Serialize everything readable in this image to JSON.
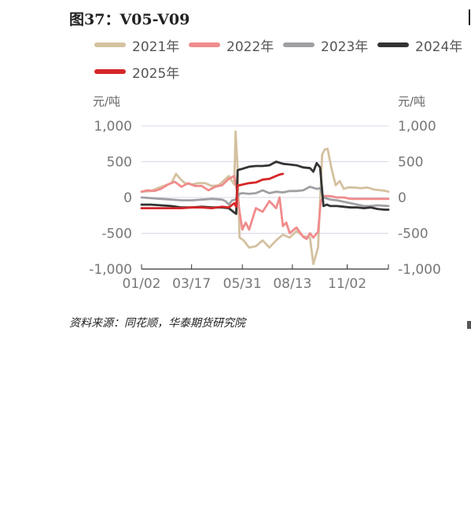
{
  "figure": {
    "title": "图37：V05-V09",
    "source": "资料来源：同花顺，华泰期货研究院"
  },
  "chart_data": {
    "type": "line",
    "unit_left": "元/吨",
    "unit_right": "元/吨",
    "ylim": [
      -1000,
      1000
    ],
    "y_ticks": [
      1000,
      500,
      0,
      -500,
      -1000
    ],
    "y_tick_labels": [
      "1,000",
      "500",
      "0",
      "-500",
      "-1,000"
    ],
    "x_tick_labels": [
      "01/02",
      "03/17",
      "05/31",
      "08/13",
      "11/02"
    ],
    "x_tick_days": [
      1,
      75,
      150,
      224,
      305
    ],
    "x_range_days": [
      1,
      366
    ],
    "grid": "horizontal",
    "legend_position": "top",
    "series": [
      {
        "name": "2021年",
        "color": "#d4c1a0",
        "x": [
          1,
          15,
          30,
          45,
          52,
          58,
          65,
          75,
          85,
          95,
          105,
          115,
          130,
          138,
          140,
          143,
          146,
          152,
          160,
          170,
          180,
          190,
          200,
          210,
          220,
          230,
          240,
          250,
          255,
          262,
          268,
          272,
          276,
          282,
          288,
          294,
          300,
          306,
          315,
          325,
          335,
          345,
          355,
          362,
          366
        ],
        "y": [
          80,
          90,
          150,
          200,
          330,
          260,
          200,
          180,
          200,
          200,
          160,
          170,
          300,
          180,
          920,
          400,
          -560,
          -600,
          -700,
          -680,
          -600,
          -700,
          -600,
          -520,
          -560,
          -470,
          -540,
          -560,
          -930,
          -700,
          600,
          670,
          680,
          400,
          170,
          230,
          120,
          140,
          140,
          130,
          140,
          110,
          100,
          90,
          80
        ]
      },
      {
        "name": "2022年",
        "color": "#f08c8c",
        "x": [
          1,
          10,
          20,
          30,
          40,
          50,
          60,
          70,
          80,
          90,
          100,
          110,
          120,
          130,
          138,
          142,
          146,
          150,
          155,
          160,
          170,
          180,
          190,
          200,
          205,
          210,
          215,
          220,
          230,
          240,
          245,
          250,
          255,
          262,
          266,
          272,
          280,
          290,
          300,
          310,
          320,
          330,
          340,
          350,
          366
        ],
        "y": [
          80,
          100,
          90,
          120,
          180,
          220,
          150,
          200,
          160,
          160,
          100,
          150,
          170,
          260,
          300,
          100,
          -200,
          -450,
          -350,
          -450,
          -150,
          -200,
          -50,
          -150,
          0,
          -400,
          -350,
          -500,
          -420,
          -550,
          -580,
          -500,
          -560,
          -480,
          -50,
          20,
          20,
          0,
          0,
          -20,
          -20,
          -20,
          -20,
          -20,
          -20
        ]
      },
      {
        "name": "2023年",
        "color": "#a0a0a4",
        "x": [
          1,
          15,
          30,
          45,
          60,
          75,
          90,
          105,
          120,
          125,
          130,
          135,
          140,
          146,
          150,
          160,
          170,
          180,
          190,
          200,
          210,
          220,
          230,
          240,
          250,
          260,
          265,
          270,
          280,
          290,
          300,
          310,
          320,
          330,
          340,
          350,
          366
        ],
        "y": [
          0,
          -10,
          -20,
          -30,
          -40,
          -40,
          -30,
          -20,
          -30,
          -50,
          -100,
          -40,
          -30,
          50,
          60,
          50,
          60,
          100,
          60,
          80,
          70,
          90,
          90,
          100,
          150,
          120,
          130,
          0,
          -30,
          -40,
          -60,
          -80,
          -100,
          -120,
          -120,
          -110,
          -120
        ]
      },
      {
        "name": "2024年",
        "color": "#333333",
        "x": [
          1,
          15,
          30,
          45,
          60,
          75,
          90,
          105,
          120,
          130,
          138,
          141,
          143,
          146,
          150,
          160,
          170,
          180,
          190,
          200,
          210,
          220,
          230,
          240,
          250,
          255,
          260,
          265,
          270,
          275,
          280,
          290,
          300,
          310,
          320,
          330,
          340,
          350,
          360,
          366
        ],
        "y": [
          -100,
          -100,
          -110,
          -120,
          -140,
          -140,
          -130,
          -140,
          -140,
          -150,
          -210,
          -230,
          380,
          390,
          400,
          430,
          440,
          440,
          450,
          500,
          470,
          460,
          450,
          420,
          410,
          360,
          480,
          420,
          -120,
          -100,
          -120,
          -120,
          -130,
          -140,
          -140,
          -150,
          -140,
          -160,
          -170,
          -170
        ]
      },
      {
        "name": "2025年",
        "color": "#d62728",
        "x": [
          1,
          15,
          30,
          45,
          60,
          75,
          90,
          105,
          120,
          130,
          138,
          141,
          143,
          146,
          150,
          160,
          170,
          180,
          190,
          200,
          205,
          210
        ],
        "y": [
          -150,
          -150,
          -150,
          -150,
          -150,
          -140,
          -140,
          -150,
          -130,
          -140,
          -80,
          -130,
          170,
          170,
          180,
          200,
          210,
          250,
          260,
          300,
          320,
          330
        ]
      }
    ]
  }
}
